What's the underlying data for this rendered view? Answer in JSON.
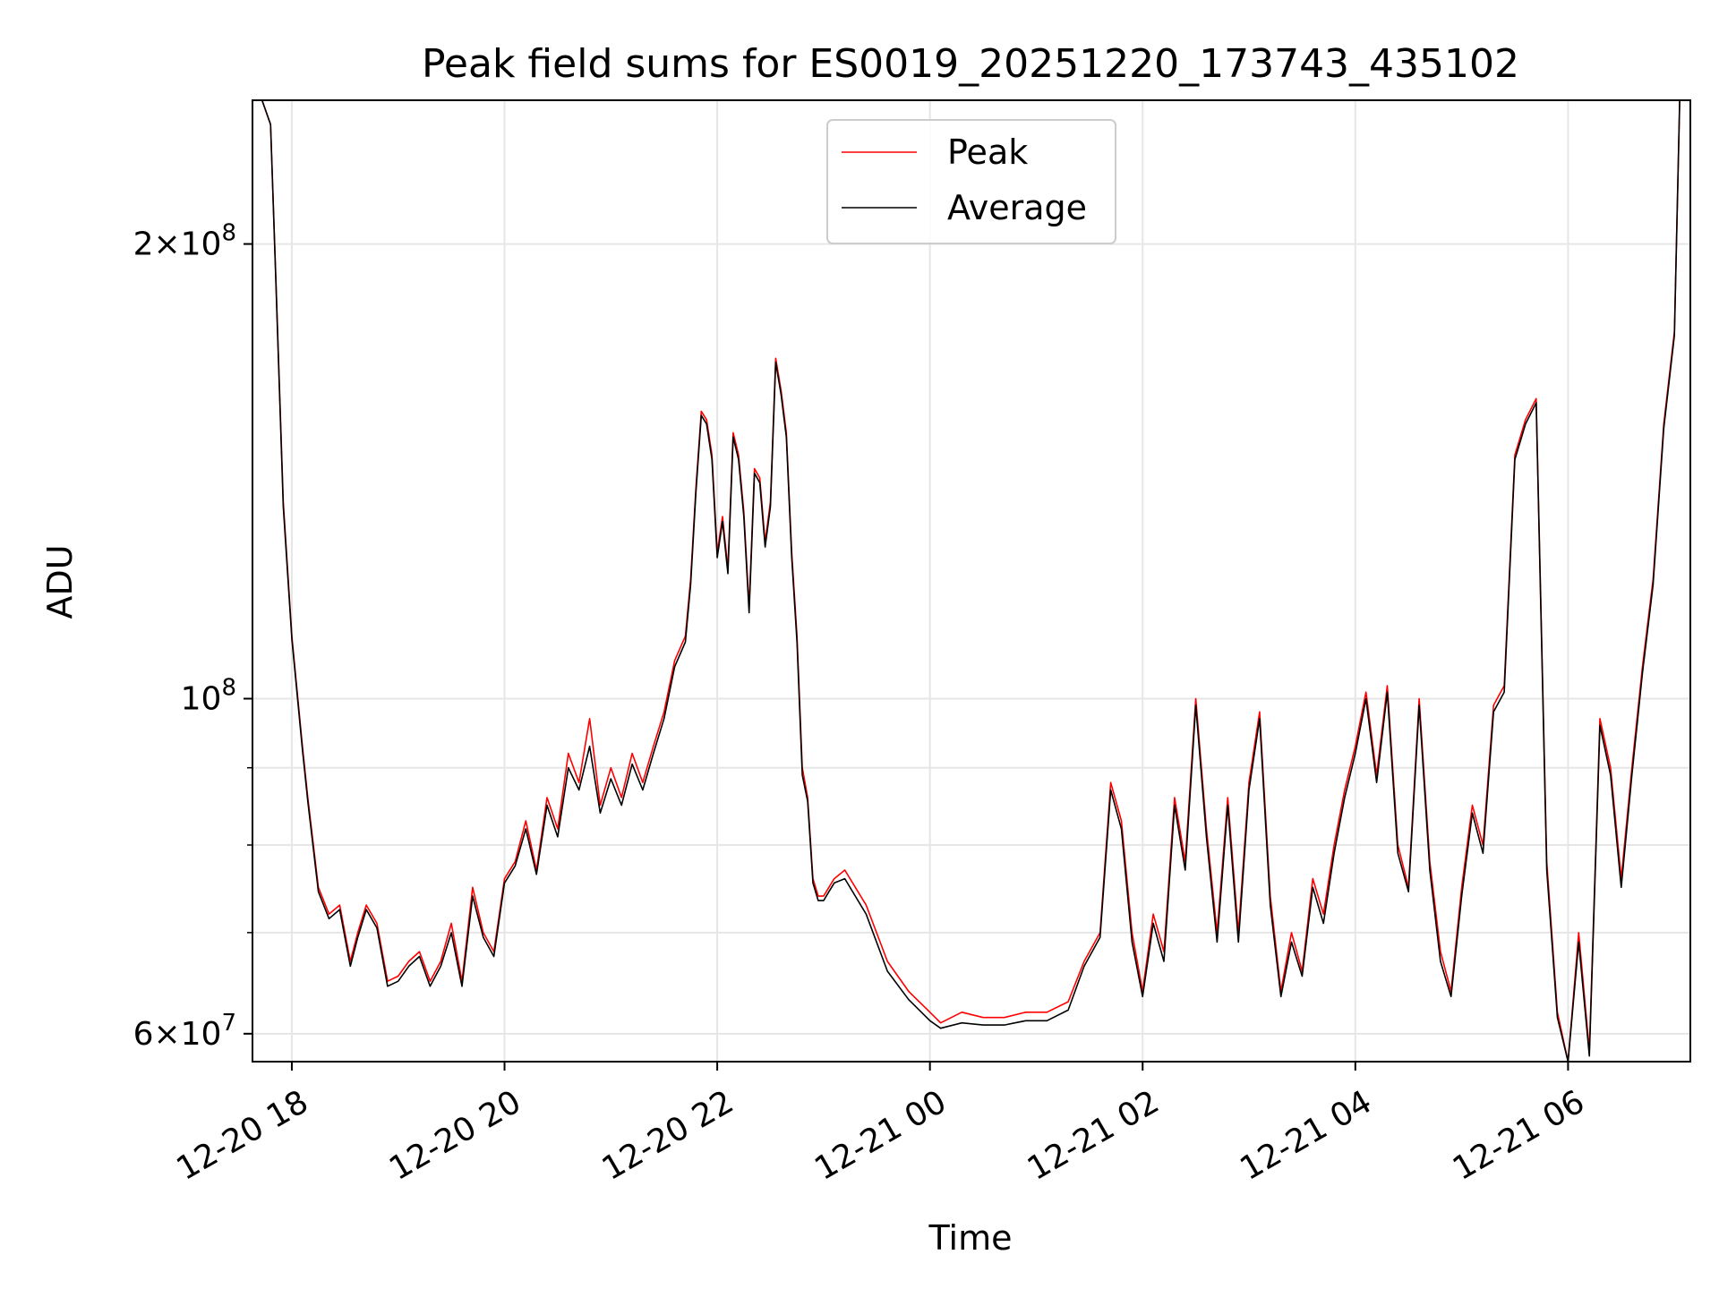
{
  "chart_data": {
    "type": "line",
    "title": "Peak field sums for ES0019_20251220_173743_435102",
    "xlabel": "Time",
    "ylabel": "ADU",
    "yscale": "log",
    "ylim": [
      57500000,
      249000000
    ],
    "xlim_hours": [
      17.63,
      31.15
    ],
    "x_unit": "hours since 2025-12-20 00:00",
    "grid": true,
    "legend_position": "upper center",
    "x_ticks": [
      {
        "value": 18,
        "label": "12-20 18"
      },
      {
        "value": 20,
        "label": "12-20 20"
      },
      {
        "value": 22,
        "label": "12-20 22"
      },
      {
        "value": 24,
        "label": "12-21 00"
      },
      {
        "value": 26,
        "label": "12-21 02"
      },
      {
        "value": 28,
        "label": "12-21 04"
      },
      {
        "value": 30,
        "label": "12-21 06"
      }
    ],
    "y_major_ticks": [
      {
        "value": 60000000,
        "mantissa": "6",
        "exponent": "7",
        "label": "6 × 10^7"
      },
      {
        "value": 100000000,
        "mantissa": "",
        "exponent": "8",
        "label": "10^8"
      },
      {
        "value": 200000000,
        "mantissa": "2",
        "exponent": "8",
        "label": "2 × 10^8"
      }
    ],
    "y_minor_ticks": [
      70000000,
      80000000,
      90000000
    ],
    "x_hours": [
      17.63,
      17.72,
      17.8,
      17.85,
      17.92,
      18.0,
      18.1,
      18.15,
      18.25,
      18.35,
      18.45,
      18.55,
      18.62,
      18.7,
      18.8,
      18.9,
      19.0,
      19.1,
      19.2,
      19.3,
      19.4,
      19.5,
      19.6,
      19.7,
      19.8,
      19.9,
      20.0,
      20.1,
      20.2,
      20.3,
      20.4,
      20.5,
      20.6,
      20.7,
      20.8,
      20.9,
      21.0,
      21.1,
      21.2,
      21.3,
      21.4,
      21.5,
      21.6,
      21.7,
      21.75,
      21.8,
      21.85,
      21.9,
      21.95,
      22.0,
      22.05,
      22.1,
      22.15,
      22.2,
      22.25,
      22.3,
      22.35,
      22.4,
      22.45,
      22.5,
      22.55,
      22.6,
      22.65,
      22.7,
      22.75,
      22.8,
      22.85,
      22.9,
      22.95,
      23.0,
      23.05,
      23.1,
      23.2,
      23.4,
      23.6,
      23.8,
      24.0,
      24.1,
      24.3,
      24.5,
      24.7,
      24.9,
      25.1,
      25.3,
      25.45,
      25.6,
      25.7,
      25.8,
      25.9,
      26.0,
      26.1,
      26.2,
      26.3,
      26.4,
      26.5,
      26.6,
      26.7,
      26.8,
      26.9,
      27.0,
      27.1,
      27.2,
      27.3,
      27.4,
      27.5,
      27.6,
      27.7,
      27.8,
      27.9,
      28.0,
      28.1,
      28.2,
      28.3,
      28.4,
      28.5,
      28.6,
      28.7,
      28.8,
      28.9,
      29.0,
      29.1,
      29.2,
      29.3,
      29.4,
      29.5,
      29.6,
      29.7,
      29.8,
      29.9,
      30.0,
      30.1,
      30.2,
      30.3,
      30.4,
      30.5,
      30.6,
      30.7,
      30.8,
      30.9,
      31.0,
      31.05,
      31.15
    ],
    "series": [
      {
        "name": "Peak",
        "color": "#ff0000",
        "values": [
          249000000,
          249000000,
          240000000,
          190000000,
          135000000,
          110000000,
          93000000,
          86000000,
          75000000,
          72000000,
          73000000,
          67000000,
          70000000,
          73000000,
          71000000,
          65000000,
          65500000,
          67000000,
          68000000,
          65000000,
          67000000,
          71000000,
          65000000,
          75000000,
          70000000,
          68000000,
          76000000,
          78000000,
          83000000,
          77000000,
          86000000,
          82000000,
          92000000,
          88000000,
          97000000,
          85000000,
          90000000,
          86000000,
          92000000,
          88000000,
          93000000,
          98000000,
          106000000,
          110000000,
          120000000,
          138000000,
          155000000,
          153000000,
          145000000,
          125000000,
          132000000,
          122000000,
          150000000,
          145000000,
          133000000,
          115000000,
          142000000,
          140000000,
          127000000,
          135000000,
          168000000,
          160000000,
          150000000,
          125000000,
          110000000,
          90000000,
          86000000,
          76000000,
          74000000,
          74000000,
          75000000,
          76000000,
          77000000,
          73000000,
          67000000,
          64000000,
          62000000,
          61000000,
          62000000,
          61500000,
          61500000,
          62000000,
          62000000,
          63000000,
          67000000,
          70000000,
          88000000,
          83000000,
          70000000,
          64000000,
          72000000,
          68000000,
          86000000,
          78000000,
          100000000,
          82000000,
          70000000,
          86000000,
          70000000,
          88000000,
          98000000,
          74000000,
          64000000,
          70000000,
          66000000,
          76000000,
          72000000,
          80000000,
          87000000,
          93000000,
          101000000,
          89000000,
          102000000,
          80000000,
          75000000,
          100000000,
          78000000,
          68000000,
          64000000,
          75000000,
          85000000,
          80000000,
          99000000,
          102000000,
          145000000,
          153000000,
          158000000,
          78000000,
          62000000,
          57500000,
          70000000,
          58500000,
          97000000,
          90000000,
          76000000,
          90000000,
          105000000,
          120000000,
          152000000,
          175000000,
          249000000,
          249000000
        ]
      },
      {
        "name": "Average",
        "color": "#000000",
        "values": [
          249000000,
          249000000,
          240000000,
          189000000,
          134000000,
          109500000,
          92500000,
          85500000,
          74500000,
          71500000,
          72500000,
          66500000,
          69500000,
          72500000,
          70500000,
          64500000,
          65000000,
          66500000,
          67500000,
          64500000,
          66500000,
          70000000,
          64500000,
          74000000,
          69500000,
          67500000,
          75500000,
          77500000,
          82000000,
          76500000,
          85000000,
          81000000,
          90000000,
          87000000,
          93000000,
          84000000,
          88500000,
          85000000,
          90500000,
          87000000,
          92000000,
          97000000,
          105000000,
          109000000,
          119000000,
          137000000,
          154000000,
          152000000,
          144000000,
          124000000,
          131000000,
          121000000,
          149000000,
          144000000,
          132000000,
          114000000,
          141000000,
          139000000,
          126000000,
          134000000,
          167000000,
          159000000,
          149000000,
          124000000,
          109000000,
          89000000,
          85500000,
          75500000,
          73500000,
          73500000,
          74500000,
          75500000,
          76000000,
          72000000,
          66000000,
          63200000,
          61200000,
          60500000,
          61000000,
          60800000,
          60800000,
          61200000,
          61200000,
          62200000,
          66500000,
          69500000,
          87000000,
          82000000,
          69000000,
          63500000,
          71000000,
          67000000,
          85000000,
          77000000,
          99000000,
          81000000,
          69000000,
          85000000,
          69000000,
          87000000,
          97000000,
          73000000,
          63500000,
          69000000,
          65500000,
          75000000,
          71000000,
          79000000,
          86000000,
          92000000,
          100000000,
          88000000,
          101000000,
          79000000,
          74500000,
          99000000,
          77000000,
          67000000,
          63500000,
          74000000,
          84000000,
          79000000,
          98000000,
          101000000,
          144000000,
          152000000,
          157000000,
          77000000,
          61500000,
          57500000,
          69000000,
          58000000,
          96000000,
          89000000,
          75000000,
          89000000,
          104000000,
          119000000,
          151000000,
          174000000,
          249000000,
          249000000
        ]
      }
    ]
  }
}
